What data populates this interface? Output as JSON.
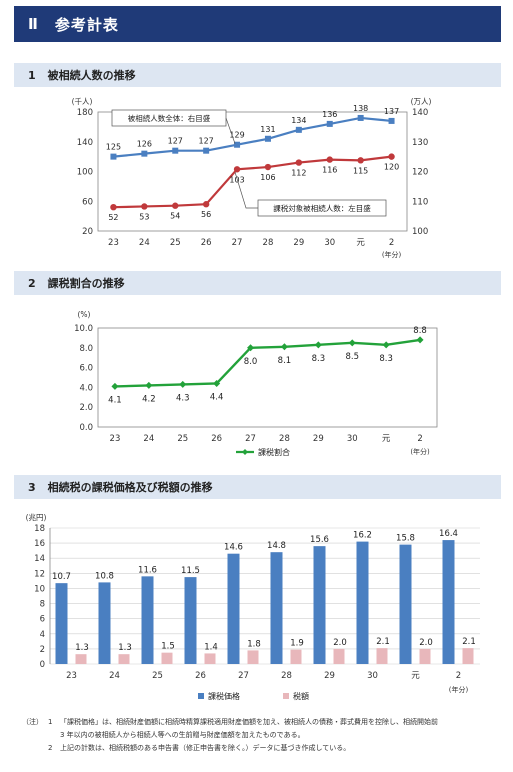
{
  "page": {
    "section_numeral": "Ⅱ",
    "section_title": "参考計表"
  },
  "sections": [
    {
      "num": "1",
      "title": "被相続人数の推移"
    },
    {
      "num": "2",
      "title": "課税割合の推移"
    },
    {
      "num": "3",
      "title": "相続税の課税価格及び税額の推移"
    }
  ],
  "chart_data": [
    {
      "type": "line",
      "categories": [
        "23",
        "24",
        "25",
        "26",
        "27",
        "28",
        "29",
        "30",
        "元",
        "2"
      ],
      "x_unit": "(年分)",
      "y_left_unit": "(千人)",
      "y_right_unit": "(万人)",
      "y_left_ticks": [
        "20",
        "60",
        "100",
        "140",
        "180"
      ],
      "y_right_ticks": [
        "100",
        "110",
        "120",
        "130",
        "140"
      ],
      "ylim_left": [
        20,
        180
      ],
      "ylim_right": [
        100,
        140
      ],
      "series": [
        {
          "name": "被相続人数全体：右目盛",
          "axis": "right",
          "color": "#4a7fc1",
          "marker": "square",
          "values": [
            125,
            126,
            127,
            127,
            129,
            131,
            134,
            136,
            138,
            137
          ]
        },
        {
          "name": "課税対象被相続人数：左目盛",
          "axis": "left",
          "color": "#c0393b",
          "marker": "circle",
          "values": [
            52,
            53,
            54,
            56,
            103,
            106,
            112,
            116,
            115,
            120
          ]
        }
      ]
    },
    {
      "type": "line",
      "categories": [
        "23",
        "24",
        "25",
        "26",
        "27",
        "28",
        "29",
        "30",
        "元",
        "2"
      ],
      "x_unit": "(年分)",
      "y_unit": "(%)",
      "y_ticks": [
        "0.0",
        "2.0",
        "4.0",
        "6.0",
        "8.0",
        "10.0"
      ],
      "ylim": [
        0,
        10
      ],
      "series": [
        {
          "name": "課税割合",
          "color": "#23a23a",
          "marker": "diamond",
          "values": [
            4.1,
            4.2,
            4.3,
            4.4,
            8.0,
            8.1,
            8.3,
            8.5,
            8.3,
            8.8
          ],
          "labels": [
            "4.1",
            "4.2",
            "4.3",
            "4.4",
            "8.0",
            "8.1",
            "8.3",
            "8.5",
            "8.3",
            "8.8"
          ]
        }
      ]
    },
    {
      "type": "bar",
      "categories": [
        "23",
        "24",
        "25",
        "26",
        "27",
        "28",
        "29",
        "30",
        "元",
        "2"
      ],
      "x_unit": "(年分)",
      "y_unit": "(兆円)",
      "y_ticks": [
        "0",
        "2",
        "4",
        "6",
        "8",
        "10",
        "12",
        "14",
        "16",
        "18"
      ],
      "ylim": [
        0,
        18
      ],
      "series": [
        {
          "name": "課税価格",
          "color": "#4a7fc1",
          "values": [
            10.7,
            10.8,
            11.6,
            11.5,
            14.6,
            14.8,
            15.6,
            16.2,
            15.8,
            16.4
          ],
          "labels": [
            "10.7",
            "10.8",
            "11.6",
            "11.5",
            "14.6",
            "14.8",
            "15.6",
            "16.2",
            "15.8",
            "16.4"
          ]
        },
        {
          "name": "税額",
          "color": "#e8b7bb",
          "values": [
            1.3,
            1.3,
            1.5,
            1.4,
            1.8,
            1.9,
            2.0,
            2.1,
            2.0,
            2.1
          ],
          "labels": [
            "1.3",
            "1.3",
            "1.5",
            "1.4",
            "1.8",
            "1.9",
            "2.0",
            "2.1",
            "2.0",
            "2.1"
          ]
        }
      ]
    }
  ],
  "notes": {
    "label": "（注）",
    "items": [
      {
        "num": "1",
        "line1": "「課税価格」は、相続財産価額に相続時精算課税適用財産価額を加え、被相続人の債務・葬式費用を控除し、相続開始前",
        "line2": "3 年以内の被相続人から相続人等への生前贈与財産価額を加えたものである。"
      },
      {
        "num": "2",
        "line1": "上記の計数は、相続税額のある申告書（修正申告書を除く。）データに基づき作成している。",
        "line2": ""
      }
    ]
  }
}
